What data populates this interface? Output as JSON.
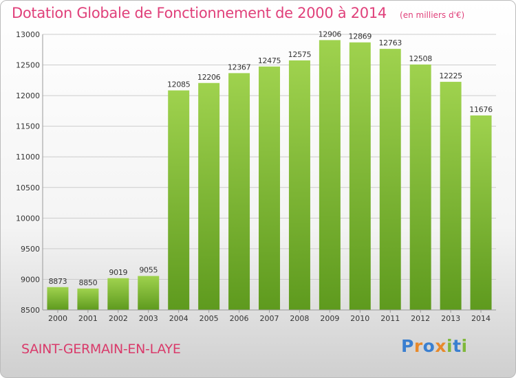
{
  "header": {
    "title": "Dotation Globale de Fonctionnement de 2000 à 2014",
    "subtitle": "(en milliers d'€)"
  },
  "footer": {
    "commune": "SAINT-GERMAIN-EN-LAYE",
    "brand_letters": [
      {
        "char": "P",
        "color": "#3a7fd0"
      },
      {
        "char": "r",
        "color": "#e8892a"
      },
      {
        "char": "o",
        "color": "#3a7fd0"
      },
      {
        "char": "x",
        "color": "#e8892a"
      },
      {
        "char": "i",
        "color": "#7fb83a"
      },
      {
        "char": "t",
        "color": "#3a7fd0"
      },
      {
        "char": "i",
        "color": "#7fb83a"
      }
    ]
  },
  "colors": {
    "bar_top": "#9fd24e",
    "bar_bottom": "#5e9a1e",
    "grid": "#cccccc",
    "axis_text": "#333333"
  },
  "chart_data": {
    "type": "bar",
    "title": "Dotation Globale de Fonctionnement de 2000 à 2014",
    "subtitle": "(en milliers d'€)",
    "categories": [
      "2000",
      "2001",
      "2002",
      "2003",
      "2004",
      "2005",
      "2006",
      "2007",
      "2008",
      "2009",
      "2010",
      "2011",
      "2012",
      "2013",
      "2014"
    ],
    "values": [
      8873,
      8850,
      9019,
      9055,
      12085,
      12206,
      12367,
      12475,
      12575,
      12906,
      12869,
      12763,
      12508,
      12225,
      11676
    ],
    "ylim": [
      8500,
      13000
    ],
    "yticks": [
      8500,
      9000,
      9500,
      10000,
      10500,
      11000,
      11500,
      12000,
      12500,
      13000
    ],
    "grid": true,
    "xlabel": "",
    "ylabel": ""
  }
}
